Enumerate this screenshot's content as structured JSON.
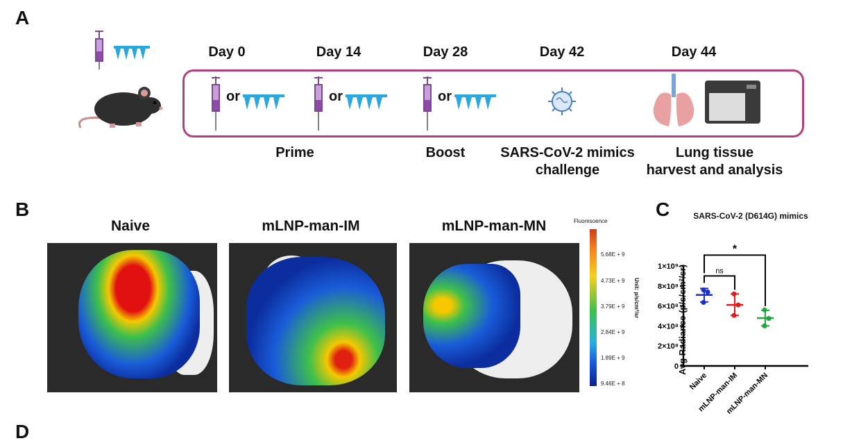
{
  "panels": {
    "a": "A",
    "b": "B",
    "c": "C",
    "d": "D"
  },
  "timeline": {
    "days": [
      "Day 0",
      "Day 14",
      "Day 28",
      "Day 42",
      "Day 44"
    ],
    "or_label": "or",
    "captions": {
      "prime": "Prime",
      "boost": "Boost",
      "challenge_1": "SARS-CoV-2 mimics",
      "challenge_2": "challenge",
      "harvest_1": "Lung tissue",
      "harvest_2": "harvest and analysis"
    },
    "accent": "#b5407f"
  },
  "imaging": {
    "titles": [
      "Naive",
      "mLNP-man-IM",
      "mLNP-man-MN"
    ],
    "colorbar": {
      "title": "Fluoresoence",
      "ticks": [
        "5.68E + 9",
        "4.73E + 9",
        "3.79E + 9",
        "2.84E + 9",
        "1.89E + 9",
        "9.46E + 8"
      ],
      "unit": "Unit: p/s/cm²/sr"
    }
  },
  "chart_data": {
    "type": "scatter",
    "title": "SARS-CoV-2 (D614G) mimics",
    "ylabel": "Avg Radiance (p/s/cm²/sr)",
    "categories": [
      "Naive",
      "mLNP-man-IM",
      "mLNP-man-MN"
    ],
    "ylim": [
      0,
      1000000000
    ],
    "yticks": [
      {
        "v": 0,
        "label": "0"
      },
      {
        "v": 200000000,
        "label": "2×10⁸"
      },
      {
        "v": 400000000,
        "label": "4×10⁸"
      },
      {
        "v": 600000000,
        "label": "6×10⁸"
      },
      {
        "v": 800000000,
        "label": "8×10⁸"
      },
      {
        "v": 1000000000,
        "label": "1×10⁹"
      }
    ],
    "series": [
      {
        "name": "Naive",
        "color": "#1a2fc8",
        "points": [
          760000000,
          740000000,
          635000000
        ],
        "mean": 710000000,
        "sd": [
          640000000,
          775000000
        ]
      },
      {
        "name": "mLNP-man-IM",
        "color": "#e01b1b",
        "points": [
          720000000,
          610000000,
          505000000
        ],
        "mean": 610000000,
        "sd": [
          505000000,
          720000000
        ]
      },
      {
        "name": "mLNP-man-MN",
        "color": "#1fa83a",
        "points": [
          560000000,
          475000000,
          400000000
        ],
        "mean": 478000000,
        "sd": [
          400000000,
          556000000
        ]
      }
    ],
    "significance": [
      {
        "pair": [
          "Naive",
          "mLNP-man-IM"
        ],
        "label": "ns"
      },
      {
        "pair": [
          "Naive",
          "mLNP-man-MN"
        ],
        "label": "*"
      }
    ]
  }
}
